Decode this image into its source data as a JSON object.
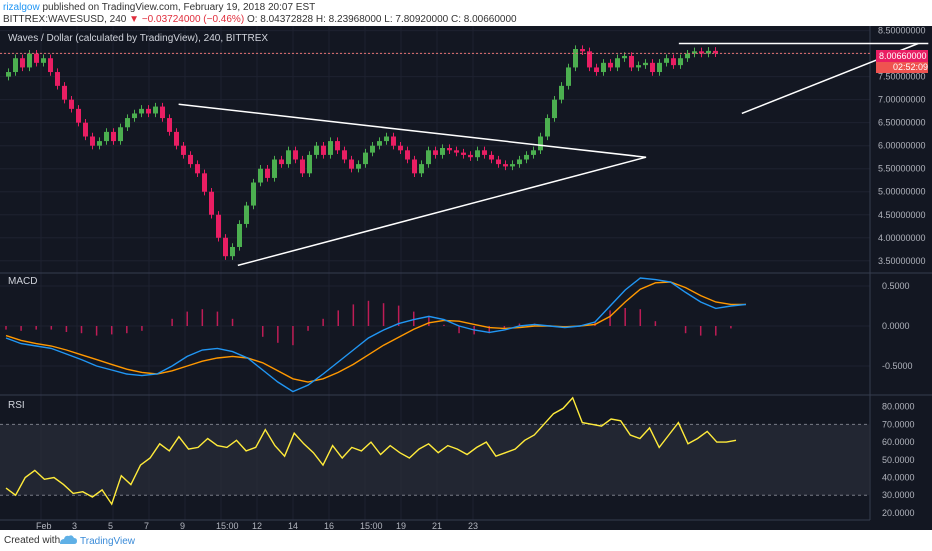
{
  "header": {
    "username": "rizalgow",
    "published_text": "published on TradingView.com, February 19, 2018 20:07 EST",
    "symbol": "BITTREX:WAVESUSD, 240",
    "change_arrow": "▼",
    "change": "−0.03724000 (−0.46%)",
    "ohlc": "O: 8.04372828  H: 8.23968000  L: 7.80920000  C: 8.00660000"
  },
  "main": {
    "title": "Waves / Dollar (calculated by TradingView), 240, BITTREX",
    "price_label": "8.00660000",
    "countdown": "02:52:09"
  },
  "footer": {
    "created": "Created with",
    "brand": "TradingView"
  },
  "colors": {
    "background": "#131722",
    "up": "#4caf50",
    "down": "#e91e63",
    "macd": "#2196f3",
    "signal": "#ff9800",
    "rsi": "#ffeb3b",
    "trendline": "#ffffff",
    "price_line": "#e57373"
  },
  "chart_data": [
    {
      "type": "candlestick",
      "title": "Waves / Dollar (calculated by TradingView), 240, BITTREX",
      "x_ticks": [
        "Feb",
        "3",
        "5",
        "7",
        "9",
        "15:00",
        "12",
        "14",
        "16",
        "15:00",
        "19",
        "21",
        "23"
      ],
      "y_ticks": [
        3.5,
        4.0,
        4.5,
        5.0,
        5.5,
        6.0,
        6.5,
        7.0,
        7.5,
        8.0,
        8.5
      ],
      "y_tick_labels": [
        "3.50000000",
        "4.00000000",
        "4.50000000",
        "5.00000000",
        "5.50000000",
        "6.00000000",
        "6.50000000",
        "7.00000000",
        "7.50000000",
        "8.00000000",
        "8.50000000"
      ],
      "ylim": [
        3.3,
        8.6
      ],
      "last_price": 8.0066,
      "closes": [
        7.6,
        7.9,
        7.7,
        8.0,
        7.8,
        7.9,
        7.6,
        7.3,
        7.0,
        6.8,
        6.5,
        6.2,
        6.0,
        6.1,
        6.3,
        6.1,
        6.4,
        6.6,
        6.7,
        6.8,
        6.7,
        6.85,
        6.6,
        6.3,
        6.0,
        5.8,
        5.6,
        5.4,
        5.0,
        4.5,
        4.0,
        3.6,
        3.8,
        4.3,
        4.7,
        5.2,
        5.5,
        5.3,
        5.7,
        5.6,
        5.9,
        5.7,
        5.4,
        5.8,
        6.0,
        5.8,
        6.1,
        5.9,
        5.7,
        5.5,
        5.6,
        5.85,
        6.0,
        6.1,
        6.2,
        6.0,
        5.9,
        5.7,
        5.4,
        5.6,
        5.9,
        5.8,
        5.95,
        5.9,
        5.85,
        5.8,
        5.75,
        5.9,
        5.8,
        5.7,
        5.6,
        5.55,
        5.6,
        5.7,
        5.8,
        5.9,
        6.2,
        6.6,
        7.0,
        7.3,
        7.7,
        8.1,
        8.05,
        7.7,
        7.6,
        7.8,
        7.7,
        7.9,
        7.95,
        7.7,
        7.75,
        7.8,
        7.6,
        7.8,
        7.9,
        7.75,
        7.9,
        8.0,
        8.05,
        8.0,
        8.06,
        8.0066
      ],
      "trendlines": [
        {
          "name": "triangle-upper",
          "from": [
            6.85,
            6.9
          ],
          "to": [
            25.4,
            5.75
          ]
        },
        {
          "name": "triangle-lower",
          "from": [
            9.2,
            3.4
          ],
          "to": [
            25.4,
            5.75
          ]
        },
        {
          "name": "resistance",
          "from": [
            26.7,
            8.22
          ],
          "to": [
            36.6,
            8.22
          ]
        },
        {
          "name": "rising-support",
          "from": [
            29.2,
            6.7
          ],
          "to": [
            36.2,
            8.22
          ]
        }
      ]
    },
    {
      "type": "line",
      "title": "MACD",
      "y_ticks": [
        0.5,
        0.0,
        -0.5
      ],
      "y_tick_labels": [
        "0.5000",
        "0.0000",
        "-0.5000"
      ],
      "ylim": [
        -0.85,
        0.65
      ],
      "series": [
        {
          "name": "macd",
          "values": [
            -0.15,
            -0.22,
            -0.25,
            -0.28,
            -0.35,
            -0.42,
            -0.5,
            -0.55,
            -0.6,
            -0.62,
            -0.6,
            -0.5,
            -0.38,
            -0.3,
            -0.28,
            -0.32,
            -0.4,
            -0.55,
            -0.7,
            -0.82,
            -0.74,
            -0.6,
            -0.45,
            -0.3,
            -0.15,
            -0.05,
            0.03,
            0.08,
            0.12,
            0.08,
            0.0,
            -0.05,
            -0.08,
            -0.05,
            0.0,
            0.02,
            0.0,
            -0.02,
            0.0,
            0.05,
            0.25,
            0.45,
            0.6,
            0.58,
            0.55,
            0.42,
            0.3,
            0.22,
            0.25,
            0.27
          ]
        },
        {
          "name": "signal",
          "values": [
            -0.12,
            -0.18,
            -0.22,
            -0.25,
            -0.3,
            -0.36,
            -0.42,
            -0.48,
            -0.54,
            -0.58,
            -0.6,
            -0.56,
            -0.5,
            -0.44,
            -0.4,
            -0.38,
            -0.4,
            -0.46,
            -0.56,
            -0.66,
            -0.7,
            -0.66,
            -0.58,
            -0.48,
            -0.36,
            -0.24,
            -0.14,
            -0.04,
            0.04,
            0.07,
            0.06,
            0.02,
            -0.02,
            -0.03,
            -0.02,
            0.0,
            0.0,
            -0.01,
            0.0,
            0.02,
            0.12,
            0.3,
            0.46,
            0.54,
            0.55,
            0.48,
            0.38,
            0.3,
            0.27,
            0.27
          ]
        }
      ]
    },
    {
      "type": "line",
      "title": "RSI",
      "y_ticks": [
        80,
        70,
        60,
        50,
        40,
        30,
        20
      ],
      "y_tick_labels": [
        "80.0000",
        "70.0000",
        "60.0000",
        "50.0000",
        "40.0000",
        "30.0000",
        "20.0000"
      ],
      "ylim": [
        16,
        86
      ],
      "bands": [
        30,
        70
      ],
      "series": [
        {
          "name": "rsi",
          "values": [
            34,
            30,
            40,
            44,
            39,
            40,
            36,
            31,
            32,
            29,
            33,
            25,
            41,
            36,
            47,
            51,
            59,
            55,
            63,
            56,
            57,
            62,
            58,
            57,
            61,
            55,
            57,
            67,
            58,
            52,
            65,
            59,
            54,
            47,
            58,
            51,
            57,
            55,
            60,
            53,
            58,
            54,
            51,
            56,
            59,
            54,
            58,
            56,
            53,
            57,
            60,
            52,
            54,
            56,
            61,
            64,
            70,
            76,
            79,
            85,
            71,
            70,
            69,
            73,
            72,
            64,
            62,
            68,
            57,
            64,
            71,
            59,
            62,
            66,
            60,
            60,
            61
          ]
        }
      ]
    }
  ]
}
